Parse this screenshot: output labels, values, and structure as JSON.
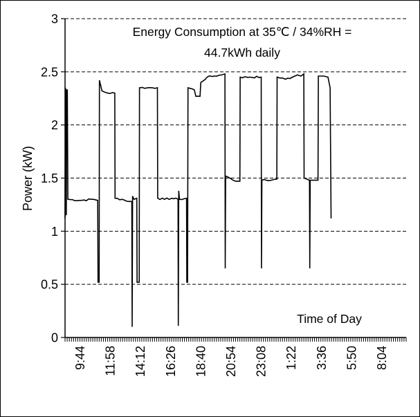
{
  "chart_data": {
    "type": "line",
    "annotation_lines": [
      "Energy Consumption at 35℃ / 34%RH =",
      "44.7kWh daily"
    ],
    "annotation_label": "Time of Day",
    "ylabel": "Power (kW)",
    "ylim": [
      0,
      3
    ],
    "y_ticks": [
      "0",
      "0.5",
      "1",
      "1.5",
      "2",
      "2.5",
      "3"
    ],
    "x_tick_labels": [
      "9:44",
      "11:58",
      "14:12",
      "16:26",
      "18:40",
      "20:54",
      "23:08",
      "1:22",
      "3:36",
      "5:50",
      "8:04"
    ],
    "x_range_hours": [
      0,
      24
    ],
    "gridlines": "horizontal-dashed",
    "series": [
      {
        "points": [
          [
            0.0,
            1.12
          ],
          [
            0.03,
            2.35
          ],
          [
            0.06,
            2.3
          ],
          [
            0.09,
            1.15
          ],
          [
            0.12,
            2.33
          ],
          [
            0.16,
            2.33
          ],
          [
            0.2,
            1.3
          ],
          [
            1.0,
            1.29
          ],
          [
            2.0,
            1.3
          ],
          [
            2.3,
            1.29
          ],
          [
            2.32,
            0.52
          ],
          [
            2.4,
            0.52
          ],
          [
            2.42,
            2.42
          ],
          [
            2.6,
            2.32
          ],
          [
            3.0,
            2.3
          ],
          [
            3.5,
            2.3
          ],
          [
            3.52,
            1.31
          ],
          [
            4.0,
            1.3
          ],
          [
            4.5,
            1.28
          ],
          [
            4.7,
            1.28
          ],
          [
            4.72,
            0.1
          ],
          [
            4.75,
            1.33
          ],
          [
            4.85,
            1.3
          ],
          [
            5.05,
            1.31
          ],
          [
            5.07,
            0.52
          ],
          [
            5.22,
            0.52
          ],
          [
            5.24,
            2.35
          ],
          [
            5.8,
            2.35
          ],
          [
            6.5,
            2.35
          ],
          [
            6.52,
            1.31
          ],
          [
            7.0,
            1.3
          ],
          [
            7.5,
            1.31
          ],
          [
            7.95,
            1.3
          ],
          [
            7.97,
            0.11
          ],
          [
            8.0,
            1.38
          ],
          [
            8.05,
            1.3
          ],
          [
            8.55,
            1.31
          ],
          [
            8.57,
            0.52
          ],
          [
            8.62,
            0.52
          ],
          [
            8.65,
            2.35
          ],
          [
            9.1,
            2.33
          ],
          [
            9.2,
            2.27
          ],
          [
            9.5,
            2.27
          ],
          [
            9.55,
            2.4
          ],
          [
            10.0,
            2.45
          ],
          [
            10.5,
            2.46
          ],
          [
            11.0,
            2.47
          ],
          [
            11.25,
            2.48
          ],
          [
            11.27,
            0.65
          ],
          [
            11.3,
            1.52
          ],
          [
            11.6,
            1.5
          ],
          [
            12.0,
            1.47
          ],
          [
            12.3,
            1.47
          ],
          [
            12.32,
            2.45
          ],
          [
            13.0,
            2.45
          ],
          [
            13.8,
            2.45
          ],
          [
            13.82,
            0.65
          ],
          [
            13.85,
            1.48
          ],
          [
            14.5,
            1.48
          ],
          [
            14.9,
            1.49
          ],
          [
            14.92,
            2.45
          ],
          [
            15.5,
            2.43
          ],
          [
            16.0,
            2.45
          ],
          [
            16.35,
            2.47
          ],
          [
            16.6,
            2.46
          ],
          [
            16.8,
            2.48
          ],
          [
            16.82,
            1.5
          ],
          [
            17.2,
            1.48
          ],
          [
            17.22,
            0.65
          ],
          [
            17.25,
            1.48
          ],
          [
            17.6,
            1.48
          ],
          [
            17.8,
            1.48
          ],
          [
            17.82,
            2.46
          ],
          [
            18.2,
            2.46
          ],
          [
            18.5,
            2.45
          ],
          [
            18.65,
            2.35
          ],
          [
            18.72,
            1.12
          ]
        ]
      }
    ]
  }
}
